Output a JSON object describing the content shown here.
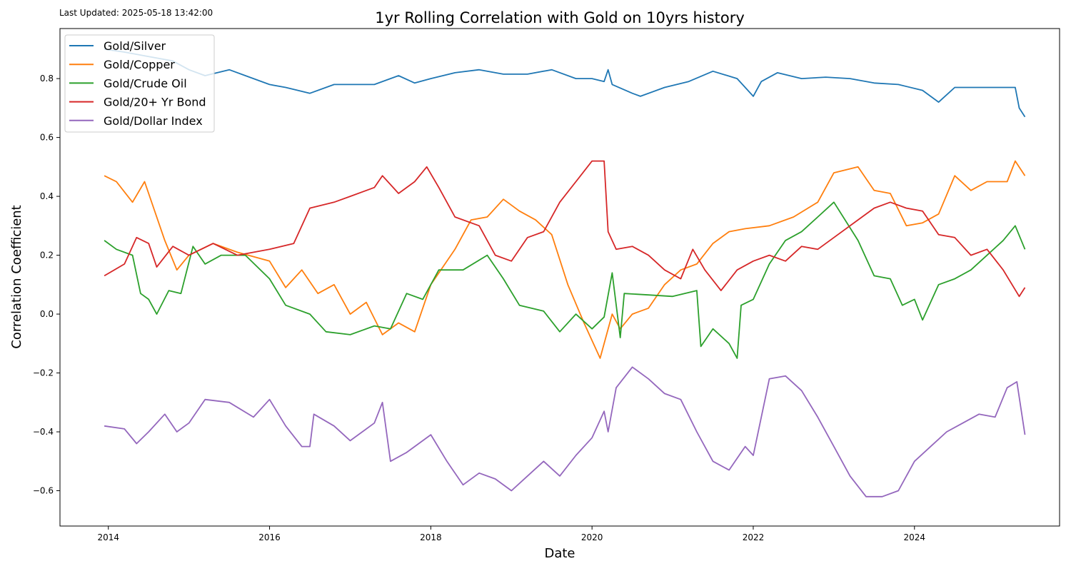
{
  "meta": {
    "last_updated": "Last Updated: 2025-05-18 13:42:00"
  },
  "chart_data": {
    "type": "line",
    "title": "1yr Rolling Correlation with Gold on 10yrs history",
    "xlabel": "Date",
    "ylabel": "Correlation Coefficient",
    "xlim": [
      2013.4,
      2025.8
    ],
    "ylim": [
      -0.72,
      0.97
    ],
    "x_ticks": [
      2014,
      2016,
      2018,
      2020,
      2022,
      2024
    ],
    "x_tick_labels": [
      "2014",
      "2016",
      "2018",
      "2020",
      "2022",
      "2024"
    ],
    "y_ticks": [
      -0.6,
      -0.4,
      -0.2,
      0.0,
      0.2,
      0.4,
      0.6,
      0.8
    ],
    "y_tick_labels": [
      "−0.6",
      "−0.4",
      "−0.2",
      "0.0",
      "0.2",
      "0.4",
      "0.6",
      "0.8"
    ],
    "grid": false,
    "legend_position": "upper-left",
    "series": [
      {
        "name": "Gold/Silver",
        "color": "#1f77b4",
        "points": [
          [
            2013.95,
            0.9
          ],
          [
            2014.2,
            0.89
          ],
          [
            2014.5,
            0.875
          ],
          [
            2014.8,
            0.86
          ],
          [
            2015.0,
            0.83
          ],
          [
            2015.2,
            0.81
          ],
          [
            2015.5,
            0.83
          ],
          [
            2015.7,
            0.81
          ],
          [
            2016.0,
            0.78
          ],
          [
            2016.2,
            0.77
          ],
          [
            2016.5,
            0.75
          ],
          [
            2016.8,
            0.78
          ],
          [
            2017.0,
            0.78
          ],
          [
            2017.3,
            0.78
          ],
          [
            2017.6,
            0.81
          ],
          [
            2017.8,
            0.785
          ],
          [
            2018.0,
            0.8
          ],
          [
            2018.3,
            0.82
          ],
          [
            2018.6,
            0.83
          ],
          [
            2018.9,
            0.815
          ],
          [
            2019.2,
            0.815
          ],
          [
            2019.5,
            0.83
          ],
          [
            2019.8,
            0.8
          ],
          [
            2020.0,
            0.8
          ],
          [
            2020.15,
            0.79
          ],
          [
            2020.2,
            0.83
          ],
          [
            2020.25,
            0.78
          ],
          [
            2020.5,
            0.75
          ],
          [
            2020.6,
            0.74
          ],
          [
            2020.9,
            0.77
          ],
          [
            2021.2,
            0.79
          ],
          [
            2021.5,
            0.825
          ],
          [
            2021.8,
            0.8
          ],
          [
            2022.0,
            0.74
          ],
          [
            2022.1,
            0.79
          ],
          [
            2022.3,
            0.82
          ],
          [
            2022.6,
            0.8
          ],
          [
            2022.9,
            0.805
          ],
          [
            2023.2,
            0.8
          ],
          [
            2023.5,
            0.785
          ],
          [
            2023.8,
            0.78
          ],
          [
            2024.1,
            0.76
          ],
          [
            2024.3,
            0.72
          ],
          [
            2024.5,
            0.77
          ],
          [
            2024.8,
            0.77
          ],
          [
            2025.1,
            0.77
          ],
          [
            2025.25,
            0.77
          ],
          [
            2025.3,
            0.7
          ],
          [
            2025.37,
            0.67
          ]
        ]
      },
      {
        "name": "Gold/Copper",
        "color": "#ff7f0e",
        "points": [
          [
            2013.95,
            0.47
          ],
          [
            2014.1,
            0.45
          ],
          [
            2014.3,
            0.38
          ],
          [
            2014.45,
            0.45
          ],
          [
            2014.7,
            0.25
          ],
          [
            2014.85,
            0.15
          ],
          [
            2015.0,
            0.2
          ],
          [
            2015.3,
            0.24
          ],
          [
            2015.6,
            0.21
          ],
          [
            2016.0,
            0.18
          ],
          [
            2016.2,
            0.09
          ],
          [
            2016.4,
            0.15
          ],
          [
            2016.6,
            0.07
          ],
          [
            2016.8,
            0.1
          ],
          [
            2017.0,
            0.0
          ],
          [
            2017.2,
            0.04
          ],
          [
            2017.4,
            -0.07
          ],
          [
            2017.6,
            -0.03
          ],
          [
            2017.8,
            -0.06
          ],
          [
            2018.0,
            0.1
          ],
          [
            2018.3,
            0.22
          ],
          [
            2018.5,
            0.32
          ],
          [
            2018.7,
            0.33
          ],
          [
            2018.9,
            0.39
          ],
          [
            2019.1,
            0.35
          ],
          [
            2019.3,
            0.32
          ],
          [
            2019.5,
            0.27
          ],
          [
            2019.7,
            0.1
          ],
          [
            2019.9,
            -0.03
          ],
          [
            2020.1,
            -0.15
          ],
          [
            2020.25,
            0.0
          ],
          [
            2020.35,
            -0.05
          ],
          [
            2020.5,
            0.0
          ],
          [
            2020.7,
            0.02
          ],
          [
            2020.9,
            0.1
          ],
          [
            2021.1,
            0.15
          ],
          [
            2021.3,
            0.17
          ],
          [
            2021.5,
            0.24
          ],
          [
            2021.7,
            0.28
          ],
          [
            2021.9,
            0.29
          ],
          [
            2022.2,
            0.3
          ],
          [
            2022.5,
            0.33
          ],
          [
            2022.8,
            0.38
          ],
          [
            2023.0,
            0.48
          ],
          [
            2023.3,
            0.5
          ],
          [
            2023.5,
            0.42
          ],
          [
            2023.7,
            0.41
          ],
          [
            2023.9,
            0.3
          ],
          [
            2024.1,
            0.31
          ],
          [
            2024.3,
            0.34
          ],
          [
            2024.5,
            0.47
          ],
          [
            2024.7,
            0.42
          ],
          [
            2024.9,
            0.45
          ],
          [
            2025.15,
            0.45
          ],
          [
            2025.25,
            0.52
          ],
          [
            2025.37,
            0.47
          ]
        ]
      },
      {
        "name": "Gold/Crude Oil",
        "color": "#2ca02c",
        "points": [
          [
            2013.95,
            0.25
          ],
          [
            2014.1,
            0.22
          ],
          [
            2014.3,
            0.2
          ],
          [
            2014.4,
            0.07
          ],
          [
            2014.5,
            0.05
          ],
          [
            2014.6,
            0.0
          ],
          [
            2014.75,
            0.08
          ],
          [
            2014.9,
            0.07
          ],
          [
            2015.05,
            0.23
          ],
          [
            2015.2,
            0.17
          ],
          [
            2015.4,
            0.2
          ],
          [
            2015.7,
            0.2
          ],
          [
            2016.0,
            0.12
          ],
          [
            2016.2,
            0.03
          ],
          [
            2016.5,
            0.0
          ],
          [
            2016.7,
            -0.06
          ],
          [
            2017.0,
            -0.07
          ],
          [
            2017.3,
            -0.04
          ],
          [
            2017.5,
            -0.05
          ],
          [
            2017.7,
            0.07
          ],
          [
            2017.9,
            0.05
          ],
          [
            2018.1,
            0.15
          ],
          [
            2018.4,
            0.15
          ],
          [
            2018.7,
            0.2
          ],
          [
            2018.9,
            0.12
          ],
          [
            2019.1,
            0.03
          ],
          [
            2019.4,
            0.01
          ],
          [
            2019.6,
            -0.06
          ],
          [
            2019.8,
            0.0
          ],
          [
            2020.0,
            -0.05
          ],
          [
            2020.15,
            -0.01
          ],
          [
            2020.25,
            0.14
          ],
          [
            2020.35,
            -0.08
          ],
          [
            2020.4,
            0.07
          ],
          [
            2020.7,
            0.065
          ],
          [
            2021.0,
            0.06
          ],
          [
            2021.3,
            0.08
          ],
          [
            2021.35,
            -0.11
          ],
          [
            2021.5,
            -0.05
          ],
          [
            2021.7,
            -0.1
          ],
          [
            2021.8,
            -0.15
          ],
          [
            2021.85,
            0.03
          ],
          [
            2022.0,
            0.05
          ],
          [
            2022.2,
            0.17
          ],
          [
            2022.4,
            0.25
          ],
          [
            2022.6,
            0.28
          ],
          [
            2022.8,
            0.33
          ],
          [
            2023.0,
            0.38
          ],
          [
            2023.3,
            0.25
          ],
          [
            2023.5,
            0.13
          ],
          [
            2023.7,
            0.12
          ],
          [
            2023.85,
            0.03
          ],
          [
            2024.0,
            0.05
          ],
          [
            2024.1,
            -0.02
          ],
          [
            2024.3,
            0.1
          ],
          [
            2024.5,
            0.12
          ],
          [
            2024.7,
            0.15
          ],
          [
            2024.9,
            0.2
          ],
          [
            2025.1,
            0.25
          ],
          [
            2025.25,
            0.3
          ],
          [
            2025.37,
            0.22
          ]
        ]
      },
      {
        "name": "Gold/20+ Yr Bond",
        "color": "#d62728",
        "points": [
          [
            2013.95,
            0.13
          ],
          [
            2014.2,
            0.17
          ],
          [
            2014.35,
            0.26
          ],
          [
            2014.5,
            0.24
          ],
          [
            2014.6,
            0.16
          ],
          [
            2014.8,
            0.23
          ],
          [
            2015.0,
            0.2
          ],
          [
            2015.3,
            0.24
          ],
          [
            2015.6,
            0.2
          ],
          [
            2016.0,
            0.22
          ],
          [
            2016.3,
            0.24
          ],
          [
            2016.5,
            0.36
          ],
          [
            2016.8,
            0.38
          ],
          [
            2017.0,
            0.4
          ],
          [
            2017.3,
            0.43
          ],
          [
            2017.4,
            0.47
          ],
          [
            2017.6,
            0.41
          ],
          [
            2017.8,
            0.45
          ],
          [
            2017.95,
            0.5
          ],
          [
            2018.1,
            0.43
          ],
          [
            2018.3,
            0.33
          ],
          [
            2018.6,
            0.3
          ],
          [
            2018.8,
            0.2
          ],
          [
            2019.0,
            0.18
          ],
          [
            2019.2,
            0.26
          ],
          [
            2019.4,
            0.28
          ],
          [
            2019.6,
            0.38
          ],
          [
            2019.8,
            0.45
          ],
          [
            2020.0,
            0.52
          ],
          [
            2020.15,
            0.52
          ],
          [
            2020.2,
            0.28
          ],
          [
            2020.3,
            0.22
          ],
          [
            2020.5,
            0.23
          ],
          [
            2020.7,
            0.2
          ],
          [
            2020.9,
            0.15
          ],
          [
            2021.1,
            0.12
          ],
          [
            2021.25,
            0.22
          ],
          [
            2021.4,
            0.15
          ],
          [
            2021.6,
            0.08
          ],
          [
            2021.8,
            0.15
          ],
          [
            2022.0,
            0.18
          ],
          [
            2022.2,
            0.2
          ],
          [
            2022.4,
            0.18
          ],
          [
            2022.6,
            0.23
          ],
          [
            2022.8,
            0.22
          ],
          [
            2023.0,
            0.26
          ],
          [
            2023.3,
            0.32
          ],
          [
            2023.5,
            0.36
          ],
          [
            2023.7,
            0.38
          ],
          [
            2023.9,
            0.36
          ],
          [
            2024.1,
            0.35
          ],
          [
            2024.3,
            0.27
          ],
          [
            2024.5,
            0.26
          ],
          [
            2024.7,
            0.2
          ],
          [
            2024.9,
            0.22
          ],
          [
            2025.1,
            0.15
          ],
          [
            2025.3,
            0.06
          ],
          [
            2025.37,
            0.09
          ]
        ]
      },
      {
        "name": "Gold/Dollar Index",
        "color": "#9467bd",
        "points": [
          [
            2013.95,
            -0.38
          ],
          [
            2014.2,
            -0.39
          ],
          [
            2014.35,
            -0.44
          ],
          [
            2014.5,
            -0.4
          ],
          [
            2014.7,
            -0.34
          ],
          [
            2014.85,
            -0.4
          ],
          [
            2015.0,
            -0.37
          ],
          [
            2015.2,
            -0.29
          ],
          [
            2015.5,
            -0.3
          ],
          [
            2015.8,
            -0.35
          ],
          [
            2016.0,
            -0.29
          ],
          [
            2016.2,
            -0.38
          ],
          [
            2016.4,
            -0.45
          ],
          [
            2016.5,
            -0.45
          ],
          [
            2016.55,
            -0.34
          ],
          [
            2016.8,
            -0.38
          ],
          [
            2017.0,
            -0.43
          ],
          [
            2017.3,
            -0.37
          ],
          [
            2017.4,
            -0.3
          ],
          [
            2017.5,
            -0.5
          ],
          [
            2017.7,
            -0.47
          ],
          [
            2018.0,
            -0.41
          ],
          [
            2018.2,
            -0.5
          ],
          [
            2018.4,
            -0.58
          ],
          [
            2018.6,
            -0.54
          ],
          [
            2018.8,
            -0.56
          ],
          [
            2019.0,
            -0.6
          ],
          [
            2019.2,
            -0.55
          ],
          [
            2019.4,
            -0.5
          ],
          [
            2019.6,
            -0.55
          ],
          [
            2019.8,
            -0.48
          ],
          [
            2020.0,
            -0.42
          ],
          [
            2020.15,
            -0.33
          ],
          [
            2020.2,
            -0.4
          ],
          [
            2020.3,
            -0.25
          ],
          [
            2020.5,
            -0.18
          ],
          [
            2020.7,
            -0.22
          ],
          [
            2020.9,
            -0.27
          ],
          [
            2021.1,
            -0.29
          ],
          [
            2021.3,
            -0.4
          ],
          [
            2021.5,
            -0.5
          ],
          [
            2021.7,
            -0.53
          ],
          [
            2021.9,
            -0.45
          ],
          [
            2022.0,
            -0.48
          ],
          [
            2022.2,
            -0.22
          ],
          [
            2022.4,
            -0.21
          ],
          [
            2022.6,
            -0.26
          ],
          [
            2022.8,
            -0.35
          ],
          [
            2023.0,
            -0.45
          ],
          [
            2023.2,
            -0.55
          ],
          [
            2023.4,
            -0.62
          ],
          [
            2023.6,
            -0.62
          ],
          [
            2023.8,
            -0.6
          ],
          [
            2024.0,
            -0.5
          ],
          [
            2024.2,
            -0.45
          ],
          [
            2024.4,
            -0.4
          ],
          [
            2024.6,
            -0.37
          ],
          [
            2024.8,
            -0.34
          ],
          [
            2025.0,
            -0.35
          ],
          [
            2025.15,
            -0.25
          ],
          [
            2025.27,
            -0.23
          ],
          [
            2025.37,
            -0.41
          ]
        ]
      }
    ]
  }
}
